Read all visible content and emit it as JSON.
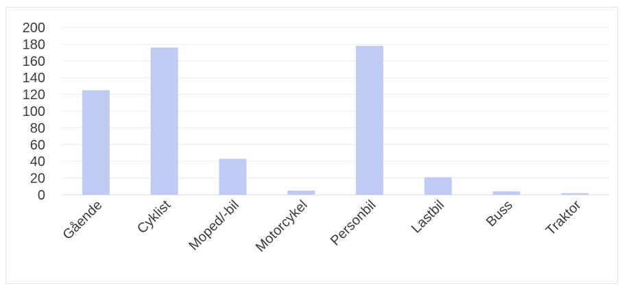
{
  "chart_data": {
    "type": "bar",
    "categories": [
      "Gående",
      "Cyklist",
      "Moped/-bil",
      "Motorcykel",
      "Personbil",
      "Lastbil",
      "Buss",
      "Traktor"
    ],
    "values": [
      125,
      176,
      43,
      5,
      178,
      21,
      4,
      2
    ],
    "ylim": [
      0,
      200
    ],
    "yticks": [
      0,
      20,
      40,
      60,
      80,
      100,
      120,
      140,
      160,
      180,
      200
    ],
    "grid": true,
    "legend": "none",
    "bar_color": "#c0cbf4"
  }
}
